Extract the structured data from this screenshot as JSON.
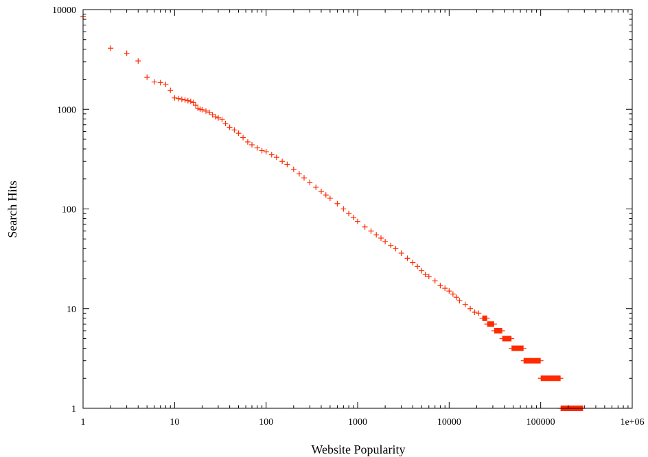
{
  "chart_data": {
    "type": "scatter",
    "title": "",
    "xlabel": "Website Popularity",
    "ylabel": "Search Hits",
    "x_scale": "log",
    "y_scale": "log",
    "xlim": [
      1,
      1000000
    ],
    "ylim": [
      1,
      10000
    ],
    "grid": false,
    "legend": "none",
    "marker": "plus",
    "color": "#ff2a00",
    "x_ticks": [
      {
        "value": 1,
        "label": "1"
      },
      {
        "value": 10,
        "label": "10"
      },
      {
        "value": 100,
        "label": "100"
      },
      {
        "value": 1000,
        "label": "1000"
      },
      {
        "value": 10000,
        "label": "10000"
      },
      {
        "value": 100000,
        "label": "100000"
      },
      {
        "value": 1000000,
        "label": "1e+06"
      }
    ],
    "y_ticks": [
      {
        "value": 1,
        "label": "1"
      },
      {
        "value": 10,
        "label": "10"
      },
      {
        "value": 100,
        "label": "100"
      },
      {
        "value": 1000,
        "label": "1000"
      },
      {
        "value": 10000,
        "label": "10000"
      }
    ],
    "points": [
      [
        1,
        8500
      ],
      [
        2,
        4100
      ],
      [
        3,
        3650
      ],
      [
        4,
        3050
      ],
      [
        5,
        2100
      ],
      [
        6,
        1880
      ],
      [
        7,
        1850
      ],
      [
        8,
        1780
      ],
      [
        9,
        1550
      ],
      [
        10,
        1300
      ],
      [
        11,
        1280
      ],
      [
        12,
        1260
      ],
      [
        13,
        1240
      ],
      [
        14,
        1220
      ],
      [
        15,
        1200
      ],
      [
        16,
        1170
      ],
      [
        17,
        1100
      ],
      [
        18,
        1020
      ],
      [
        19,
        1000
      ],
      [
        20,
        990
      ],
      [
        22,
        960
      ],
      [
        24,
        930
      ],
      [
        26,
        880
      ],
      [
        28,
        840
      ],
      [
        30,
        820
      ],
      [
        33,
        790
      ],
      [
        36,
        720
      ],
      [
        40,
        660
      ],
      [
        45,
        620
      ],
      [
        50,
        575
      ],
      [
        56,
        520
      ],
      [
        63,
        470
      ],
      [
        70,
        440
      ],
      [
        80,
        410
      ],
      [
        90,
        385
      ],
      [
        100,
        375
      ],
      [
        115,
        350
      ],
      [
        130,
        330
      ],
      [
        150,
        300
      ],
      [
        170,
        280
      ],
      [
        200,
        250
      ],
      [
        230,
        225
      ],
      [
        260,
        205
      ],
      [
        300,
        185
      ],
      [
        350,
        165
      ],
      [
        400,
        150
      ],
      [
        450,
        138
      ],
      [
        500,
        128
      ],
      [
        600,
        113
      ],
      [
        700,
        100
      ],
      [
        800,
        90
      ],
      [
        900,
        82
      ],
      [
        1000,
        75
      ],
      [
        1200,
        66
      ],
      [
        1400,
        60
      ],
      [
        1600,
        55
      ],
      [
        1800,
        51
      ],
      [
        2000,
        47
      ],
      [
        2300,
        43
      ],
      [
        2600,
        40
      ],
      [
        3000,
        36
      ],
      [
        3500,
        32
      ],
      [
        4000,
        29
      ],
      [
        4500,
        26.5
      ],
      [
        5000,
        24
      ],
      [
        5500,
        22
      ],
      [
        6000,
        21
      ],
      [
        7000,
        19
      ],
      [
        8000,
        17
      ],
      [
        9000,
        16
      ],
      [
        10000,
        15
      ],
      [
        11000,
        14
      ],
      [
        12000,
        13
      ],
      [
        13000,
        12
      ],
      [
        15000,
        11
      ],
      [
        17000,
        10
      ],
      [
        19000,
        9.2
      ],
      [
        21000,
        9
      ]
    ],
    "bands": [
      {
        "y": 8,
        "x_from": 23000,
        "x_to": 26000
      },
      {
        "y": 7,
        "x_from": 26000,
        "x_to": 31000
      },
      {
        "y": 6,
        "x_from": 31000,
        "x_to": 38000
      },
      {
        "y": 5,
        "x_from": 38000,
        "x_to": 48000
      },
      {
        "y": 4,
        "x_from": 48000,
        "x_to": 65000
      },
      {
        "y": 3,
        "x_from": 65000,
        "x_to": 100000
      },
      {
        "y": 2,
        "x_from": 100000,
        "x_to": 165000
      },
      {
        "y": 1,
        "x_from": 165000,
        "x_to": 290000
      }
    ]
  }
}
